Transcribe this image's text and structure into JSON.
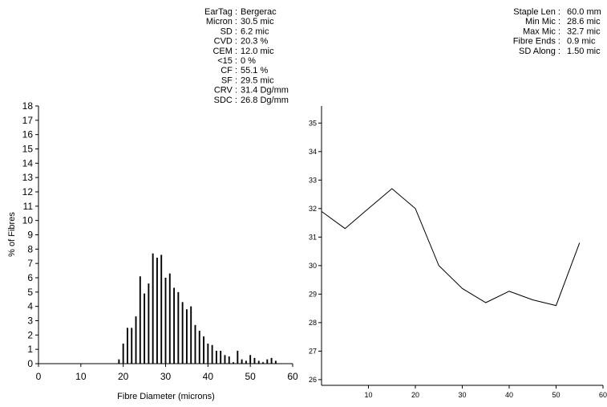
{
  "stats_left": [
    {
      "label": "EarTag :",
      "value": "Bergerac"
    },
    {
      "label": "Micron :",
      "value": "30.5 mic"
    },
    {
      "label": "SD :",
      "value": "6.2 mic"
    },
    {
      "label": "CVD :",
      "value": "20.3 %"
    },
    {
      "label": "CEM :",
      "value": "12.0 mic"
    },
    {
      "label": "<15 :",
      "value": "0 %"
    },
    {
      "label": "CF :",
      "value": "55.1 %"
    },
    {
      "label": "SF :",
      "value": "29.5 mic"
    },
    {
      "label": "CRV :",
      "value": "31.4 Dg/mm"
    },
    {
      "label": "SDC :",
      "value": "26.8 Dg/mm"
    }
  ],
  "stats_right": [
    {
      "label": "Staple Len :",
      "value": "60.0 mm"
    },
    {
      "label": "Min Mic :",
      "value": "28.6 mic"
    },
    {
      "label": "Max Mic :",
      "value": "32.7 mic"
    },
    {
      "label": "Fibre Ends :",
      "value": "0.9 mic"
    },
    {
      "label": "SD Along :",
      "value": "1.50 mic"
    }
  ],
  "chart_data": [
    {
      "type": "bar",
      "title": "",
      "xlabel": "Fibre Diameter (microns)",
      "ylabel": "% of Fibres",
      "xlim": [
        0,
        60
      ],
      "ylim": [
        0,
        18
      ],
      "xticks": [
        "0",
        "10",
        "20",
        "30",
        "40",
        "50",
        "60"
      ],
      "yticks": [
        "0",
        "1",
        "2",
        "3",
        "4",
        "5",
        "6",
        "7",
        "8",
        "9",
        "10",
        "11",
        "12",
        "13",
        "14",
        "15",
        "16",
        "17",
        "18"
      ],
      "bar_color": "#000000",
      "x": [
        19,
        19.5,
        20,
        20.5,
        21,
        21.5,
        22,
        22.5,
        23,
        23.5,
        24,
        24.5,
        25,
        25.5,
        26,
        26.5,
        27,
        27.5,
        28,
        28.5,
        29,
        29.5,
        30,
        30.5,
        31,
        31.5,
        32,
        32.5,
        33,
        33.5,
        34,
        34.5,
        35,
        35.5,
        36,
        36.5,
        37,
        37.5,
        38,
        38.5,
        39,
        39.5,
        40,
        40.5,
        41,
        41.5,
        42,
        42.5,
        43,
        43.5,
        44,
        44.5,
        45,
        45.5,
        46,
        46.5,
        47,
        47.5,
        48,
        48.5,
        49,
        49.5,
        50,
        50.5,
        51,
        51.5,
        52,
        52.5,
        53,
        53.5,
        54,
        54.5,
        55,
        55.5,
        56,
        56.5
      ],
      "values": [
        0.3,
        0,
        1.4,
        0,
        2.5,
        0,
        2.5,
        0,
        3.3,
        0,
        6.1,
        0,
        4.9,
        0,
        5.6,
        0,
        7.7,
        0,
        7.4,
        0,
        7.6,
        0,
        6.0,
        0,
        6.3,
        0,
        5.3,
        0,
        5.0,
        0,
        4.3,
        0,
        3.8,
        0,
        4.0,
        0,
        2.7,
        0,
        2.3,
        0,
        1.9,
        0,
        1.4,
        0,
        1.3,
        0,
        0.9,
        0,
        0.9,
        0,
        0.6,
        0,
        0.5,
        0,
        0.1,
        0,
        0.9,
        0,
        0.3,
        0,
        0.2,
        0,
        0.6,
        0,
        0.4,
        0,
        0.2,
        0,
        0.1,
        0,
        0.3,
        0,
        0.4,
        0,
        0.2,
        0
      ]
    },
    {
      "type": "line",
      "title": "",
      "xlabel": "",
      "ylabel": "",
      "xlim": [
        0,
        60
      ],
      "ylim": [
        25.8,
        35.6
      ],
      "xticks": [
        "10",
        "20",
        "30",
        "40",
        "50",
        "60"
      ],
      "yticks": [
        "26",
        "27",
        "28",
        "29",
        "30",
        "31",
        "32",
        "33",
        "34",
        "35"
      ],
      "line_color": "#000000",
      "x": [
        0,
        5,
        10,
        15,
        20,
        25,
        30,
        35,
        40,
        45,
        50,
        55
      ],
      "values": [
        31.9,
        31.3,
        32.0,
        32.7,
        32.0,
        30.0,
        29.2,
        28.7,
        29.1,
        28.8,
        28.6,
        30.8
      ]
    }
  ]
}
